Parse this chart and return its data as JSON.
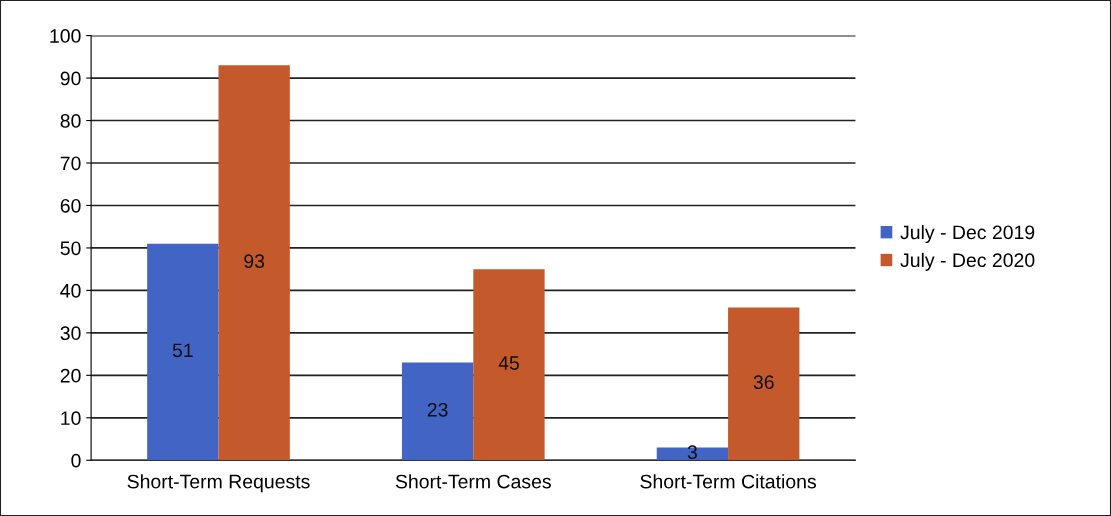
{
  "chart_data": {
    "type": "bar",
    "categories": [
      "Short-Term Requests",
      "Short-Term Cases",
      "Short-Term Citations"
    ],
    "series": [
      {
        "name": "July - Dec 2019",
        "color": "#4264c4",
        "values": [
          51,
          23,
          3
        ]
      },
      {
        "name": "July - Dec 2020",
        "color": "#c45a2c",
        "values": [
          93,
          45,
          36
        ]
      }
    ],
    "ylim": [
      0,
      100
    ],
    "yticks": [
      0,
      10,
      20,
      30,
      40,
      50,
      60,
      70,
      80,
      90,
      100
    ],
    "grid": "y",
    "legend": "right",
    "data_labels": true
  }
}
